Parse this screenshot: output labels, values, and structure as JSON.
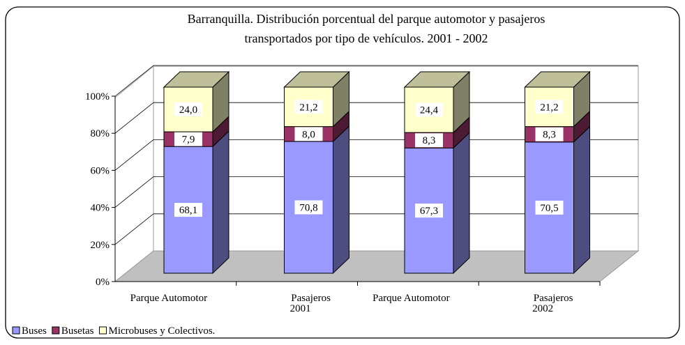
{
  "chart_data": {
    "type": "bar3d_stacked_percent",
    "title": "Barranquilla. Distribución porcentual del parque automotor y pasajeros transportados por tipo de vehículos. 2001 - 2002",
    "title_lines": [
      "Barranquilla. Distribución porcentual del parque automotor y pasajeros",
      "transportados por tipo de vehículos. 2001 - 2002"
    ],
    "categories": [
      "Parque Automotor",
      "Pasajeros",
      "Parque Automotor",
      "Pasajeros"
    ],
    "groups": [
      "2001",
      "2002"
    ],
    "series": [
      {
        "name": "Buses",
        "color": "#9999ff",
        "values": [
          68.1,
          70.8,
          67.3,
          70.5
        ],
        "value_labels": [
          "68,1",
          "70,8",
          "67,3",
          "70,5"
        ]
      },
      {
        "name": "Busetas",
        "color": "#993366",
        "values": [
          7.9,
          8.0,
          8.3,
          8.3
        ],
        "value_labels": [
          "7,9",
          "8,0",
          "8,3",
          "8,3"
        ]
      },
      {
        "name": "Microbuses y Colectivos.",
        "color": "#ffffcc",
        "values": [
          24.0,
          21.2,
          24.4,
          21.2
        ],
        "value_labels": [
          "24,0",
          "21,2",
          "24,4",
          "21,2"
        ]
      }
    ],
    "ylim": [
      0,
      100
    ],
    "yticks": [
      {
        "value": 0,
        "label": "0%"
      },
      {
        "value": 20,
        "label": "20%"
      },
      {
        "value": 40,
        "label": "40%"
      },
      {
        "value": 60,
        "label": "60%"
      },
      {
        "value": 80,
        "label": "80%"
      },
      {
        "value": 100,
        "label": "100%"
      }
    ],
    "grid": true,
    "legend": "bottom-left"
  }
}
